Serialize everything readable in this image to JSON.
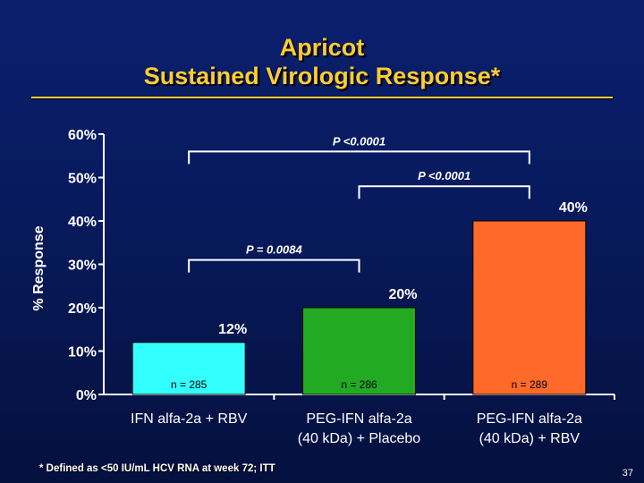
{
  "slide": {
    "title_line1": "Apricot",
    "title_line2": "Sustained Virologic Response*",
    "footnote": "* Defined as <50 IU/mL HCV RNA at week 72; ITT",
    "page_number": "37"
  },
  "colors": {
    "title": "#ffcc33",
    "text": "#ffffff",
    "bar_ifn": "#33ffff",
    "bar_peg_placebo": "#22aa22",
    "bar_peg_rbv": "#ff6a2a"
  },
  "chart_data": {
    "type": "bar",
    "title": "Apricot Sustained Virologic Response*",
    "xlabel": "",
    "ylabel": "% Response",
    "ylim": [
      0,
      60
    ],
    "yticks": [
      0,
      10,
      20,
      30,
      40,
      50,
      60
    ],
    "ytick_labels": [
      "0%",
      "10%",
      "20%",
      "30%",
      "40%",
      "50%",
      "60%"
    ],
    "grid": false,
    "legend": "none",
    "categories": [
      {
        "line1": "IFN alfa-2a + RBV",
        "line2": ""
      },
      {
        "line1": "PEG-IFN alfa-2a",
        "line2": "(40 kDa) + Placebo"
      },
      {
        "line1": "PEG-IFN alfa-2a",
        "line2": "(40 kDa) + RBV"
      }
    ],
    "values": [
      12,
      20,
      40
    ],
    "value_labels": [
      "12%",
      "20%",
      "40%"
    ],
    "n_labels": [
      "n = 285",
      "n = 286",
      "n = 289"
    ],
    "bar_colors": [
      "#33ffff",
      "#22aa22",
      "#ff6a2a"
    ],
    "comparisons": [
      {
        "from": 0,
        "to": 2,
        "label": "P <0.0001",
        "level": 56
      },
      {
        "from": 1,
        "to": 2,
        "label": "P <0.0001",
        "level": 48
      },
      {
        "from": 0,
        "to": 1,
        "label": "P = 0.0084",
        "level": 31
      }
    ]
  }
}
